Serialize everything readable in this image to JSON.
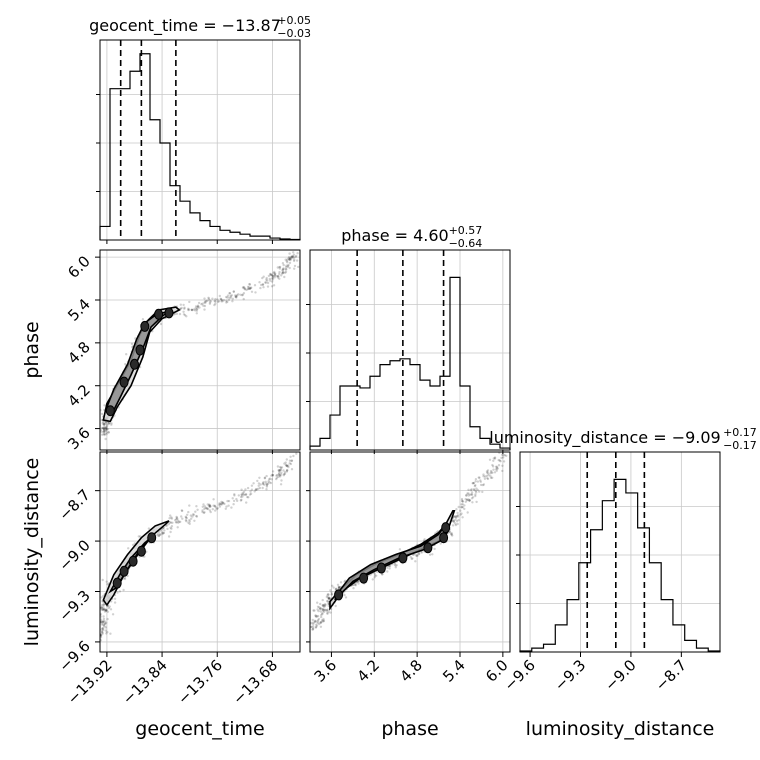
{
  "chart_data": {
    "type": "corner",
    "parameters": [
      {
        "name": "geocent_time",
        "axis_label": "geocent_time",
        "title": {
          "base": "geocent_time = −13.87",
          "sup": "+0.05",
          "sub": "−0.03"
        },
        "range": [
          -13.93,
          -13.64
        ],
        "ticks": [
          -13.92,
          -13.84,
          -13.76,
          -13.68
        ],
        "tick_labels": [
          "−13.92",
          "−13.84",
          "−13.76",
          "−13.68"
        ],
        "quantiles": [
          -13.9,
          -13.87,
          -13.82
        ],
        "hist_peak": 1.0,
        "hist": [
          0.07,
          0.78,
          0.78,
          0.87,
          0.96,
          0.62,
          0.5,
          0.28,
          0.2,
          0.14,
          0.1,
          0.07,
          0.05,
          0.04,
          0.03,
          0.02,
          0.02,
          0.01,
          0.005,
          0.003
        ]
      },
      {
        "name": "phase",
        "axis_label": "phase",
        "title": {
          "base": "phase = 4.60",
          "sup": "+0.57",
          "sub": "−0.64"
        },
        "range": [
          3.3,
          6.1
        ],
        "ticks": [
          3.6,
          4.2,
          4.8,
          5.4,
          6.0
        ],
        "tick_labels": [
          "3.6",
          "4.2",
          "4.8",
          "5.4",
          "6.0"
        ],
        "quantiles": [
          3.96,
          4.6,
          5.17
        ],
        "hist_peak": 1.0,
        "hist": [
          0.02,
          0.06,
          0.18,
          0.33,
          0.33,
          0.32,
          0.38,
          0.44,
          0.46,
          0.47,
          0.44,
          0.36,
          0.33,
          0.38,
          0.89,
          0.33,
          0.12,
          0.06,
          0.03,
          0.01
        ]
      },
      {
        "name": "luminosity_distance",
        "axis_label": "luminosity_distance",
        "title": {
          "base": "luminosity_distance = −9.09",
          "sup": "+0.17",
          "sub": "−0.17"
        },
        "range": [
          -9.66,
          -8.47
        ],
        "ticks": [
          -9.6,
          -9.3,
          -9.0,
          -8.7
        ],
        "tick_labels": [
          "−9.6",
          "−9.3",
          "−9.0",
          "−8.7"
        ],
        "quantiles": [
          -9.26,
          -9.09,
          -8.92
        ],
        "hist_peak": 1.0,
        "hist": [
          0.005,
          0.02,
          0.04,
          0.14,
          0.27,
          0.46,
          0.63,
          0.78,
          0.89,
          0.82,
          0.64,
          0.46,
          0.27,
          0.14,
          0.06,
          0.02,
          0.005
        ]
      }
    ],
    "pairs": [
      {
        "x": "geocent_time",
        "y": "phase",
        "samples_curve": [
          [
            -13.925,
            3.55
          ],
          [
            -13.92,
            3.75
          ],
          [
            -13.905,
            4.0
          ],
          [
            -13.89,
            4.35
          ],
          [
            -13.875,
            4.75
          ],
          [
            -13.86,
            5.05
          ],
          [
            -13.84,
            5.2
          ],
          [
            -13.8,
            5.28
          ],
          [
            -13.76,
            5.38
          ],
          [
            -13.72,
            5.52
          ],
          [
            -13.68,
            5.7
          ],
          [
            -13.66,
            5.85
          ],
          [
            -13.645,
            6.05
          ]
        ],
        "contour_outer": [
          [
            -13.925,
            3.72
          ],
          [
            -13.92,
            3.95
          ],
          [
            -13.905,
            4.2
          ],
          [
            -13.885,
            4.55
          ],
          [
            -13.872,
            4.92
          ],
          [
            -13.86,
            5.12
          ],
          [
            -13.845,
            5.26
          ],
          [
            -13.82,
            5.3
          ],
          [
            -13.815,
            5.26
          ],
          [
            -13.84,
            5.14
          ],
          [
            -13.858,
            4.95
          ],
          [
            -13.868,
            4.6
          ],
          [
            -13.885,
            4.2
          ],
          [
            -13.905,
            3.9
          ],
          [
            -13.915,
            3.7
          ]
        ],
        "contour_inner": [
          [
            -13.922,
            3.85
          ],
          [
            -13.91,
            4.15
          ],
          [
            -13.89,
            4.5
          ],
          [
            -13.877,
            4.85
          ],
          [
            -13.865,
            5.08
          ],
          [
            -13.848,
            5.2
          ],
          [
            -13.83,
            5.24
          ],
          [
            -13.84,
            5.17
          ],
          [
            -13.856,
            5.02
          ],
          [
            -13.868,
            4.72
          ],
          [
            -13.885,
            4.35
          ],
          [
            -13.9,
            4.05
          ],
          [
            -13.912,
            3.82
          ]
        ],
        "dense_cores": [
          [
            -13.915,
            3.85
          ],
          [
            -13.895,
            4.25
          ],
          [
            -13.88,
            4.5
          ],
          [
            -13.872,
            4.7
          ],
          [
            -13.865,
            5.03
          ],
          [
            -13.845,
            5.2
          ],
          [
            -13.83,
            5.22
          ]
        ]
      },
      {
        "x": "geocent_time",
        "y": "luminosity_distance",
        "samples_curve": [
          [
            -13.93,
            -9.58
          ],
          [
            -13.925,
            -9.42
          ],
          [
            -13.915,
            -9.3
          ],
          [
            -13.9,
            -9.2
          ],
          [
            -13.885,
            -9.12
          ],
          [
            -13.87,
            -9.03
          ],
          [
            -13.85,
            -8.95
          ],
          [
            -13.82,
            -8.88
          ],
          [
            -13.78,
            -8.82
          ],
          [
            -13.74,
            -8.76
          ],
          [
            -13.7,
            -8.68
          ],
          [
            -13.67,
            -8.6
          ],
          [
            -13.645,
            -8.5
          ]
        ],
        "contour_outer": [
          [
            -13.925,
            -9.35
          ],
          [
            -13.91,
            -9.2
          ],
          [
            -13.89,
            -9.08
          ],
          [
            -13.87,
            -8.98
          ],
          [
            -13.85,
            -8.91
          ],
          [
            -13.83,
            -8.88
          ],
          [
            -13.835,
            -8.9
          ],
          [
            -13.855,
            -8.97
          ],
          [
            -13.875,
            -9.08
          ],
          [
            -13.895,
            -9.2
          ],
          [
            -13.91,
            -9.32
          ],
          [
            -13.92,
            -9.38
          ]
        ],
        "contour_inner": [
          [
            -13.915,
            -9.3
          ],
          [
            -13.9,
            -9.19
          ],
          [
            -13.885,
            -9.1
          ],
          [
            -13.865,
            -9.01
          ],
          [
            -13.85,
            -8.96
          ],
          [
            -13.858,
            -8.98
          ],
          [
            -13.875,
            -9.07
          ],
          [
            -13.892,
            -9.18
          ],
          [
            -13.907,
            -9.28
          ]
        ],
        "dense_cores": [
          [
            -13.905,
            -9.25
          ],
          [
            -13.895,
            -9.18
          ],
          [
            -13.882,
            -9.12
          ],
          [
            -13.87,
            -9.06
          ],
          [
            -13.855,
            -8.98
          ]
        ]
      },
      {
        "x": "phase",
        "y": "luminosity_distance",
        "samples_curve": [
          [
            3.35,
            -9.52
          ],
          [
            3.5,
            -9.38
          ],
          [
            3.7,
            -9.3
          ],
          [
            3.95,
            -9.23
          ],
          [
            4.2,
            -9.18
          ],
          [
            4.5,
            -9.12
          ],
          [
            4.8,
            -9.06
          ],
          [
            5.05,
            -9.0
          ],
          [
            5.2,
            -8.95
          ],
          [
            5.35,
            -8.85
          ],
          [
            5.55,
            -8.72
          ],
          [
            5.8,
            -8.6
          ],
          [
            6.05,
            -8.48
          ]
        ],
        "contour_outer": [
          [
            3.58,
            -9.4
          ],
          [
            3.75,
            -9.3
          ],
          [
            4.0,
            -9.22
          ],
          [
            4.3,
            -9.16
          ],
          [
            4.6,
            -9.1
          ],
          [
            4.9,
            -9.04
          ],
          [
            5.1,
            -9.0
          ],
          [
            5.22,
            -8.95
          ],
          [
            5.32,
            -8.82
          ],
          [
            5.3,
            -8.82
          ],
          [
            5.2,
            -8.9
          ],
          [
            5.1,
            -8.95
          ],
          [
            4.85,
            -9.02
          ],
          [
            4.55,
            -9.08
          ],
          [
            4.25,
            -9.13
          ],
          [
            3.95,
            -9.2
          ],
          [
            3.7,
            -9.3
          ],
          [
            3.58,
            -9.36
          ]
        ],
        "contour_inner": [
          [
            3.65,
            -9.35
          ],
          [
            3.9,
            -9.24
          ],
          [
            4.2,
            -9.17
          ],
          [
            4.55,
            -9.1
          ],
          [
            4.9,
            -9.05
          ],
          [
            5.12,
            -9.0
          ],
          [
            5.22,
            -8.92
          ],
          [
            5.2,
            -8.9
          ],
          [
            5.1,
            -8.96
          ],
          [
            4.85,
            -9.03
          ],
          [
            4.5,
            -9.08
          ],
          [
            4.15,
            -9.14
          ],
          [
            3.85,
            -9.22
          ],
          [
            3.67,
            -9.32
          ]
        ],
        "dense_cores": [
          [
            3.7,
            -9.32
          ],
          [
            4.05,
            -9.22
          ],
          [
            4.3,
            -9.16
          ],
          [
            4.6,
            -9.1
          ],
          [
            4.95,
            -9.04
          ],
          [
            5.17,
            -8.98
          ],
          [
            5.2,
            -8.92
          ]
        ]
      }
    ],
    "grid": true
  }
}
